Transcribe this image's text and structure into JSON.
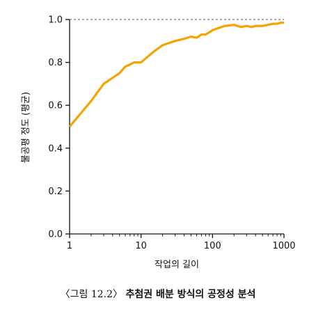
{
  "chart_data": {
    "type": "line",
    "xlabel": "작업의 길이",
    "ylabel": "불공평 정도 (평균)",
    "xscale": "log",
    "xlim": [
      1,
      1000
    ],
    "ylim": [
      0.0,
      1.0
    ],
    "x_ticks": [
      1,
      10,
      100,
      1000
    ],
    "x_tick_labels": [
      "1",
      "10",
      "100",
      "1000"
    ],
    "y_ticks": [
      0.0,
      0.2,
      0.4,
      0.6,
      0.8,
      1.0
    ],
    "y_tick_labels": [
      "0.0",
      "0.2",
      "0.4",
      "0.6",
      "0.8",
      "1.0"
    ],
    "reference_line": {
      "y": 1.0,
      "style": "dashed"
    },
    "grid": false,
    "colors": {
      "series": "#f5a300",
      "axis": "#111111",
      "reference": "#555555"
    },
    "series": [
      {
        "x": [
          1,
          2,
          3,
          5,
          6,
          7,
          8,
          10,
          15,
          20,
          30,
          40,
          50,
          60,
          70,
          80,
          90,
          100,
          120,
          150,
          200,
          250,
          300,
          350,
          400,
          500,
          600,
          700,
          800,
          900,
          1000
        ],
        "y": [
          0.5,
          0.62,
          0.7,
          0.75,
          0.78,
          0.79,
          0.8,
          0.8,
          0.85,
          0.88,
          0.9,
          0.91,
          0.92,
          0.915,
          0.93,
          0.93,
          0.94,
          0.95,
          0.96,
          0.97,
          0.975,
          0.965,
          0.97,
          0.965,
          0.97,
          0.97,
          0.975,
          0.98,
          0.98,
          0.985,
          0.985
        ]
      }
    ]
  },
  "caption": {
    "prefix": "〈그림 12.2〉",
    "title": "추첨권 배분 방식의 공정성 분석"
  }
}
